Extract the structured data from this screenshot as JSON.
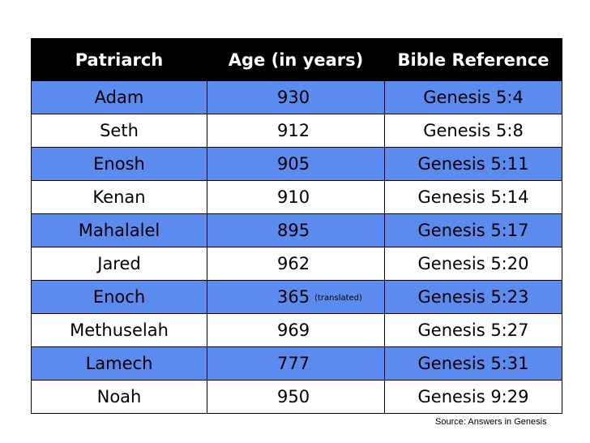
{
  "headers": {
    "patriarch": "Patriarch",
    "age": "Age (in years)",
    "reference": "Bible Reference"
  },
  "rows": [
    {
      "name": "Adam",
      "age": "930",
      "note": "",
      "ref": "Genesis 5:4"
    },
    {
      "name": "Seth",
      "age": "912",
      "note": "",
      "ref": "Genesis 5:8"
    },
    {
      "name": "Enosh",
      "age": "905",
      "note": "",
      "ref": "Genesis 5:11"
    },
    {
      "name": "Kenan",
      "age": "910",
      "note": "",
      "ref": "Genesis 5:14"
    },
    {
      "name": "Mahalalel",
      "age": "895",
      "note": "",
      "ref": "Genesis 5:17"
    },
    {
      "name": "Jared",
      "age": "962",
      "note": "",
      "ref": "Genesis 5:20"
    },
    {
      "name": "Enoch",
      "age": "365",
      "note": "(translated)",
      "ref": "Genesis 5:23"
    },
    {
      "name": "Methuselah",
      "age": "969",
      "note": "",
      "ref": "Genesis 5:27"
    },
    {
      "name": "Lamech",
      "age": "777",
      "note": "",
      "ref": "Genesis 5:31"
    },
    {
      "name": "Noah",
      "age": "950",
      "note": "",
      "ref": "Genesis 9:29"
    }
  ],
  "colors": {
    "header_bg": "#000000",
    "row_highlight": "#5B8BEF",
    "row_plain": "#ffffff"
  },
  "source": "Source: Answers in Genesis"
}
